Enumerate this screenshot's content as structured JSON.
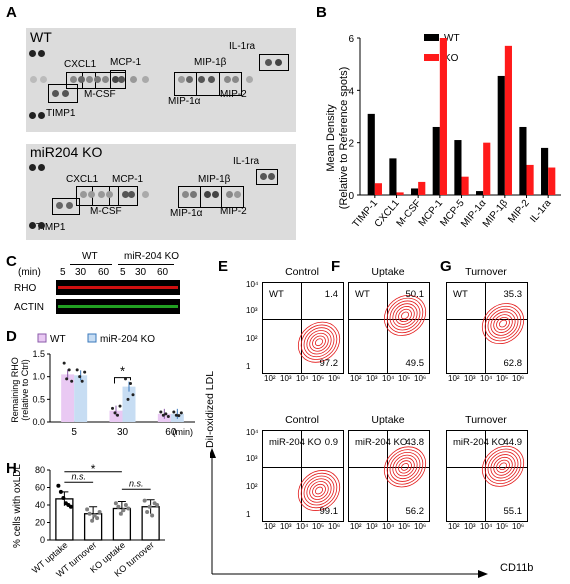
{
  "panels": {
    "A": "A",
    "B": "B",
    "C": "C",
    "D": "D",
    "E": "E",
    "F": "F",
    "G": "G",
    "H": "H"
  },
  "panelA": {
    "wt_title": "WT",
    "ko_title": "miR204 KO",
    "labels": {
      "il1ra": "IL-1ra",
      "cxcl1": "CXCL1",
      "mcp1": "MCP-1",
      "mip1b": "MIP-1β",
      "timp1": "TIMP1",
      "mcsf": "M-CSF",
      "mip1a": "MIP-1α",
      "mip2": "MIP-2"
    }
  },
  "panelB": {
    "legend": [
      "WT",
      "KO"
    ],
    "ylabel_line1": "Mean Density",
    "ylabel_line2": "(Relative to Reference spots)",
    "ticks": [
      "0",
      "2",
      "4",
      "6"
    ]
  },
  "chart_data": [
    {
      "type": "bar",
      "categories": [
        "TIMP-1",
        "CXCL1",
        "M-CSF",
        "MCP-1",
        "MCP-5",
        "MIP-1α",
        "MIP-1β",
        "MIP-2",
        "IL-1ra"
      ],
      "series": [
        {
          "name": "WT",
          "values": [
            3.1,
            1.4,
            0.25,
            2.6,
            2.1,
            0.15,
            4.55,
            2.6,
            1.8
          ]
        },
        {
          "name": "KO",
          "values": [
            0.45,
            0.1,
            0.5,
            6.0,
            0.7,
            2.0,
            5.7,
            1.15,
            1.05
          ]
        }
      ],
      "ylim": [
        0,
        6
      ],
      "ylabel": "Mean Density (Relative to Reference spots)",
      "colors": {
        "WT": "#000000",
        "KO": "#ff1a1a"
      },
      "legend": "top-right"
    },
    {
      "type": "bar",
      "categories": [
        "5",
        "30",
        "60"
      ],
      "xlabel": "(min)",
      "series": [
        {
          "name": "WT",
          "values": [
            1.05,
            0.25,
            0.18
          ]
        },
        {
          "name": "miR-204 KO",
          "values": [
            1.03,
            0.78,
            0.18
          ]
        }
      ],
      "ylim": [
        0,
        1.5
      ],
      "yticks": [
        "0.0",
        "0.5",
        "1.0",
        "1.5"
      ],
      "ylabel": "Remaining RHO (relative to Ctrl)",
      "colors": {
        "WT": "#e9c9f3",
        "miR-204 KO": "#c7ddf3"
      },
      "annotation": "*"
    },
    {
      "type": "bar",
      "categories": [
        "WT uptake",
        "WT turnover",
        "KO uptake",
        "KO turnover"
      ],
      "values": [
        47,
        30,
        36,
        38
      ],
      "ylim": [
        0,
        80
      ],
      "yticks": [
        "0",
        "20",
        "40",
        "60",
        "80"
      ],
      "ylabel": "% cells with oxLDL",
      "colors": [
        "#000000",
        "#7f7f7f",
        "#7f7f7f",
        "#7f7f7f"
      ],
      "annotations": [
        "*",
        "n.s.",
        "n.s."
      ]
    }
  ],
  "panelC": {
    "wt": "WT",
    "ko": "miR-204 KO",
    "min": "(min)",
    "times": [
      "5",
      "30",
      "60",
      "5",
      "30",
      "60"
    ],
    "rho": "RHO",
    "actin": "ACTIN"
  },
  "panelD": {
    "legend_wt": "WT",
    "legend_ko": "miR-204 KO"
  },
  "flow": {
    "titles": [
      "Control",
      "Uptake",
      "Turnover",
      "Control",
      "Uptake",
      "Turnover"
    ],
    "genotypes": [
      "WT",
      "WT",
      "WT",
      "miR-204 KO",
      "miR-204 KO",
      "miR-204 KO"
    ],
    "upper_right": [
      "1.4",
      "50.1",
      "35.3",
      "0.9",
      "43.8",
      "44.9"
    ],
    "lower_right": [
      "97.2",
      "49.5",
      "62.8",
      "99.1",
      "56.2",
      "55.1"
    ],
    "yaxis": "DiI-oxidized LDL",
    "xaxis": "CD11b",
    "xticks": [
      "10²",
      "10³",
      "10⁴",
      "10⁵",
      "10⁶"
    ],
    "yticks": [
      "10⁴",
      "10³",
      "10²",
      "1"
    ]
  }
}
